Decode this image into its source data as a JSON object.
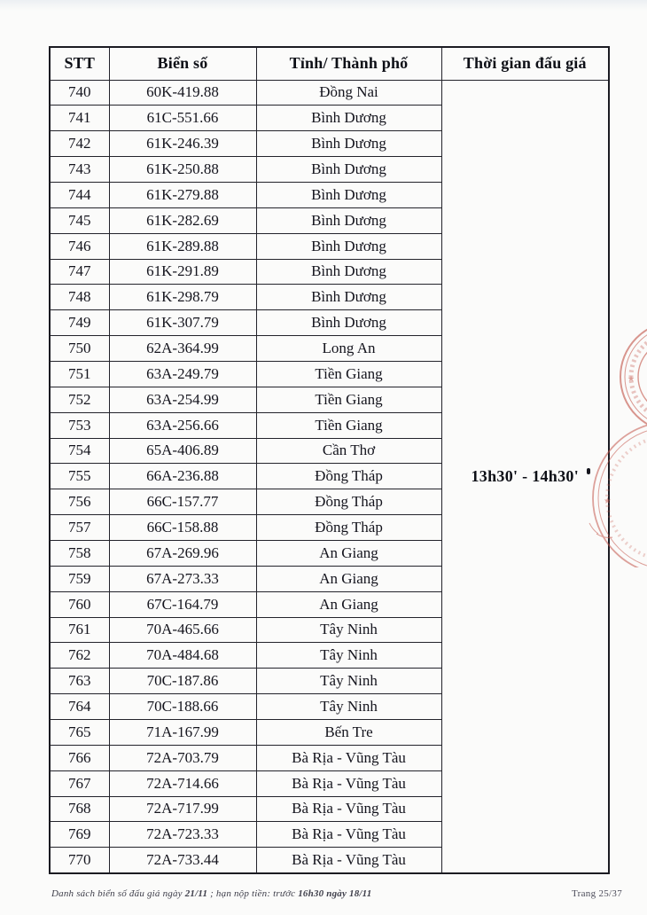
{
  "table": {
    "headers": [
      "STT",
      "Biển số",
      "Tỉnh/ Thành phố",
      "Thời gian đấu giá"
    ],
    "auction_time": "13h30' - 14h30'",
    "rows": [
      {
        "stt": "740",
        "plate": "60K-419.88",
        "province": "Đồng Nai"
      },
      {
        "stt": "741",
        "plate": "61C-551.66",
        "province": "Bình Dương"
      },
      {
        "stt": "742",
        "plate": "61K-246.39",
        "province": "Bình Dương"
      },
      {
        "stt": "743",
        "plate": "61K-250.88",
        "province": "Bình Dương"
      },
      {
        "stt": "744",
        "plate": "61K-279.88",
        "province": "Bình Dương"
      },
      {
        "stt": "745",
        "plate": "61K-282.69",
        "province": "Bình Dương"
      },
      {
        "stt": "746",
        "plate": "61K-289.88",
        "province": "Bình Dương"
      },
      {
        "stt": "747",
        "plate": "61K-291.89",
        "province": "Bình Dương"
      },
      {
        "stt": "748",
        "plate": "61K-298.79",
        "province": "Bình Dương"
      },
      {
        "stt": "749",
        "plate": "61K-307.79",
        "province": "Bình Dương"
      },
      {
        "stt": "750",
        "plate": "62A-364.99",
        "province": "Long An"
      },
      {
        "stt": "751",
        "plate": "63A-249.79",
        "province": "Tiền Giang"
      },
      {
        "stt": "752",
        "plate": "63A-254.99",
        "province": "Tiền Giang"
      },
      {
        "stt": "753",
        "plate": "63A-256.66",
        "province": "Tiền Giang"
      },
      {
        "stt": "754",
        "plate": "65A-406.89",
        "province": "Cần Thơ"
      },
      {
        "stt": "755",
        "plate": "66A-236.88",
        "province": "Đồng Tháp"
      },
      {
        "stt": "756",
        "plate": "66C-157.77",
        "province": "Đồng Tháp"
      },
      {
        "stt": "757",
        "plate": "66C-158.88",
        "province": "Đồng Tháp"
      },
      {
        "stt": "758",
        "plate": "67A-269.96",
        "province": "An Giang"
      },
      {
        "stt": "759",
        "plate": "67A-273.33",
        "province": "An Giang"
      },
      {
        "stt": "760",
        "plate": "67C-164.79",
        "province": "An Giang"
      },
      {
        "stt": "761",
        "plate": "70A-465.66",
        "province": "Tây Ninh"
      },
      {
        "stt": "762",
        "plate": "70A-484.68",
        "province": "Tây Ninh"
      },
      {
        "stt": "763",
        "plate": "70C-187.86",
        "province": "Tây Ninh"
      },
      {
        "stt": "764",
        "plate": "70C-188.66",
        "province": "Tây Ninh"
      },
      {
        "stt": "765",
        "plate": "71A-167.99",
        "province": "Bến Tre"
      },
      {
        "stt": "766",
        "plate": "72A-703.79",
        "province": "Bà Rịa - Vũng Tàu"
      },
      {
        "stt": "767",
        "plate": "72A-714.66",
        "province": "Bà Rịa - Vũng Tàu"
      },
      {
        "stt": "768",
        "plate": "72A-717.99",
        "province": "Bà Rịa - Vũng Tàu"
      },
      {
        "stt": "769",
        "plate": "72A-723.33",
        "province": "Bà Rịa - Vũng Tàu"
      },
      {
        "stt": "770",
        "plate": "72A-733.44",
        "province": "Bà Rịa - Vũng Tàu"
      }
    ]
  },
  "footer": {
    "parts": [
      {
        "text": "Danh sách biển số đấu giá ngày ",
        "bold": false
      },
      {
        "text": "21/11",
        "bold": true
      },
      {
        "text": " ; hạn nộp tiền: trước ",
        "bold": false
      },
      {
        "text": "16h30 ngày 18/11",
        "bold": true
      }
    ],
    "page_label": "Trang 25/37"
  },
  "stamp": {
    "color": "#c4574c"
  }
}
